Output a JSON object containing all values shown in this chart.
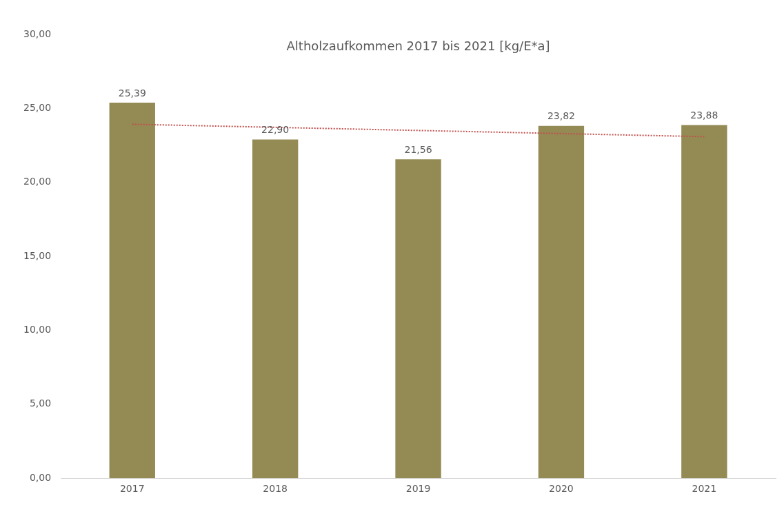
{
  "chart_data": {
    "type": "bar",
    "title": "Altholzaufkommen 2017 bis 2021 [kg/E*a]",
    "categories": [
      "2017",
      "2018",
      "2019",
      "2020",
      "2021"
    ],
    "series": [
      {
        "color": "#948a54",
        "values": [
          25.39,
          22.9,
          21.56,
          23.82,
          23.88
        ],
        "value_labels": [
          "25,39",
          "22,90",
          "21,56",
          "23,82",
          "23,88"
        ]
      },
      {
        "type": "line",
        "color": "#c0504d",
        "line_style": "dotted",
        "marker": "none",
        "values": [
          23.93,
          23.72,
          23.51,
          23.3,
          23.09
        ]
      }
    ],
    "ylim": [
      0,
      30
    ],
    "yticks": [
      {
        "value": 0,
        "label": "0,00"
      },
      {
        "value": 5,
        "label": "5,00"
      },
      {
        "value": 10,
        "label": "10,00"
      },
      {
        "value": 15,
        "label": "15,00"
      },
      {
        "value": 20,
        "label": "20,00"
      },
      {
        "value": 25,
        "label": "25,00"
      },
      {
        "value": 30,
        "label": "30,00"
      }
    ],
    "grid": false,
    "legend": false
  }
}
